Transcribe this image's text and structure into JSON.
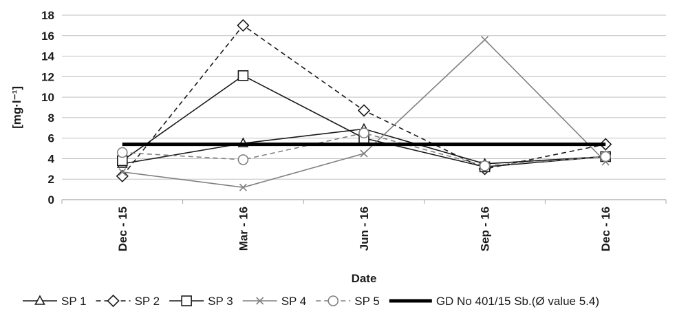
{
  "chart_data": {
    "type": "line",
    "xlabel": "Date",
    "ylabel": "[mg·l⁻¹]",
    "ylim": [
      0,
      18
    ],
    "yticks": [
      "0",
      "2",
      "4",
      "6",
      "8",
      "10",
      "12",
      "14",
      "16",
      "18"
    ],
    "grid": true,
    "legend_position": "bottom",
    "categories": [
      "Dec - 15",
      "Mar - 16",
      "Jun - 16",
      "Sep - 16",
      "Dec - 16"
    ],
    "series": [
      {
        "name": "SP 1",
        "values": [
          3.5,
          5.5,
          6.9,
          3.5,
          4.2
        ],
        "marker": "triangle",
        "dash": "solid",
        "color": "#1a1a1a"
      },
      {
        "name": "SP 2",
        "values": [
          2.3,
          17.0,
          8.7,
          3.0,
          5.4
        ],
        "marker": "diamond",
        "dash": "dashed",
        "color": "#1a1a1a"
      },
      {
        "name": "SP 3",
        "values": [
          3.8,
          12.1,
          6.0,
          3.2,
          4.2
        ],
        "marker": "square",
        "dash": "solid",
        "color": "#1a1a1a"
      },
      {
        "name": "SP 4",
        "values": [
          2.7,
          1.2,
          4.5,
          15.6,
          3.7
        ],
        "marker": "x",
        "dash": "solid",
        "color": "#808080"
      },
      {
        "name": "SP 5",
        "values": [
          4.6,
          3.9,
          6.5,
          3.3,
          4.2
        ],
        "marker": "circle",
        "dash": "dashed",
        "color": "#808080"
      },
      {
        "name": "GD No 401/15 Sb.(Ø value 5.4)",
        "values": [
          5.4,
          5.4,
          5.4,
          5.4,
          5.4
        ],
        "marker": "none",
        "dash": "solid",
        "color": "#000000",
        "bold": true
      }
    ]
  }
}
